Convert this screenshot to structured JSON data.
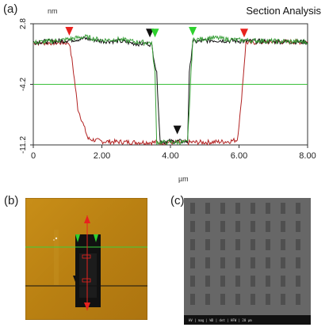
{
  "panel_a": {
    "label": "(a)",
    "title": "Section Analysis",
    "y_unit": "nm",
    "x_unit": "µm",
    "chart_data": {
      "type": "line",
      "xlim": [
        0,
        8
      ],
      "ylim": [
        -11.2,
        2.8
      ],
      "x_ticks": [
        "0",
        "2.00",
        "4.00",
        "6.00",
        "8.00"
      ],
      "x_tick_values": [
        0,
        2,
        4,
        6,
        8
      ],
      "y_ticks": [
        "2.8",
        "-4.2",
        "-11.2"
      ],
      "y_tick_values": [
        2.8,
        -4.2,
        -11.2
      ],
      "reference_line_y": -4.2,
      "series": [
        {
          "color": "#b22222",
          "x": [
            0,
            1.05,
            1.15,
            1.3,
            1.6,
            2.0,
            3.0,
            4.0,
            5.0,
            5.7,
            5.95,
            6.05,
            6.2,
            6.8,
            7.3,
            8.0
          ],
          "y": [
            0.6,
            0.6,
            -2.0,
            -7.0,
            -10.5,
            -10.8,
            -10.9,
            -10.9,
            -10.9,
            -10.8,
            -10.6,
            -7.0,
            0.6,
            0.7,
            0.7,
            0.7
          ]
        },
        {
          "color": "#111111",
          "x": [
            0,
            0.8,
            1.5,
            2.0,
            2.5,
            3.0,
            3.35,
            3.45,
            3.6,
            3.7,
            4.5,
            4.55,
            4.65,
            5.2,
            6.0,
            8.0
          ],
          "y": [
            0.7,
            0.8,
            1.1,
            0.8,
            0.8,
            0.5,
            0.5,
            0.4,
            -3.0,
            -10.8,
            -10.8,
            -3.0,
            0.7,
            0.9,
            0.8,
            0.7
          ]
        },
        {
          "color": "#3aa03a",
          "x": [
            0,
            0.8,
            1.5,
            2.0,
            2.5,
            3.0,
            3.45,
            3.55,
            3.6,
            3.75,
            4.5,
            4.6,
            4.65,
            5.2,
            6.0,
            8.0
          ],
          "y": [
            0.6,
            0.9,
            1.3,
            0.9,
            1.0,
            0.7,
            0.6,
            -3.0,
            -10.9,
            -10.9,
            -10.9,
            -3.0,
            0.9,
            1.2,
            0.9,
            0.7
          ]
        }
      ],
      "markers": [
        {
          "color": "#e8221e",
          "x": 1.05,
          "y": 1.7
        },
        {
          "color": "#111111",
          "x": 3.4,
          "y": 1.5
        },
        {
          "color": "#2ed12e",
          "x": 3.55,
          "y": 1.5
        },
        {
          "color": "#2ed12e",
          "x": 4.65,
          "y": 1.7
        },
        {
          "color": "#e8221e",
          "x": 6.15,
          "y": 1.5
        },
        {
          "color": "#111111",
          "x": 4.2,
          "y": -9.7
        }
      ]
    }
  },
  "panel_b": {
    "label": "(b)"
  },
  "panel_c": {
    "label": "(c)",
    "sem_footer": "HV | mag | WD | det | HFW | 20 μm"
  }
}
